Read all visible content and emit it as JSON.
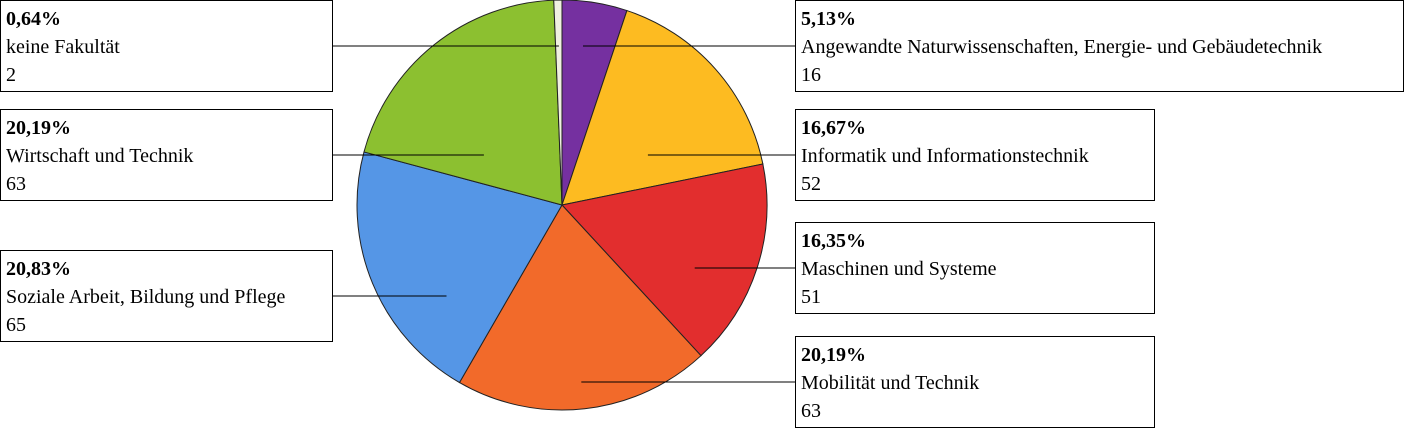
{
  "chart_data": {
    "type": "pie",
    "slices": [
      {
        "name": "Angewandte Naturwissenschaften, Energie- und Gebäudetechnik",
        "value": 16,
        "percent": "5,13%",
        "color": "#7530a0"
      },
      {
        "name": "Informatik und Informationstechnik",
        "value": 52,
        "percent": "16,67%",
        "color": "#fdbb21"
      },
      {
        "name": "Maschinen und Systeme",
        "value": 51,
        "percent": "16,35%",
        "color": "#e22e2e"
      },
      {
        "name": "Mobilität und Technik",
        "value": 63,
        "percent": "20,19%",
        "color": "#f26a2a"
      },
      {
        "name": "Soziale Arbeit, Bildung und Pflege",
        "value": 65,
        "percent": "20,83%",
        "color": "#5596e6"
      },
      {
        "name": "Wirtschaft und Technik",
        "value": 63,
        "percent": "20,19%",
        "color": "#8cc030"
      },
      {
        "name": "keine Fakultät",
        "value": 2,
        "percent": "0,64%",
        "color": "#f0f0e0"
      }
    ],
    "start_angle": "top",
    "direction": "clockwise",
    "legend": "none",
    "data_labels": "boxed callouts on both sides"
  }
}
